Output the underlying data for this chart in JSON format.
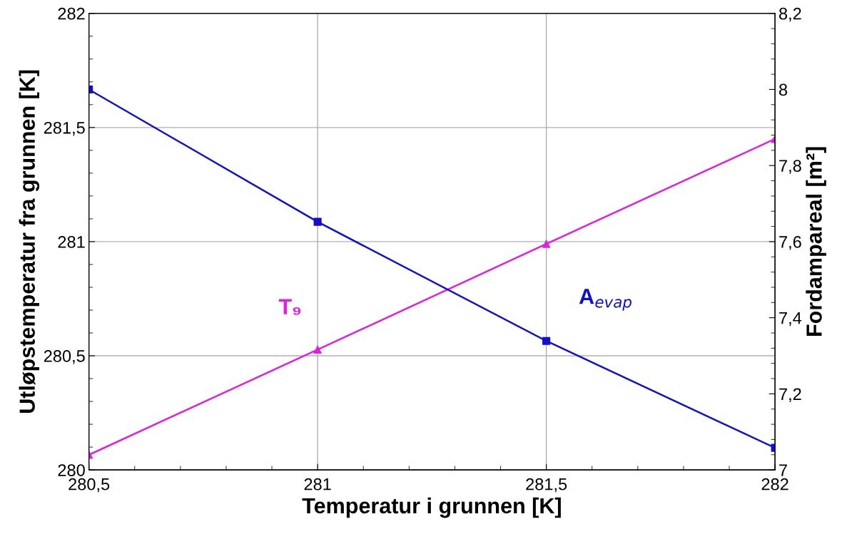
{
  "chart_data": {
    "type": "line",
    "xlabel": "Temperatur i grunnen [K]",
    "ylabel": "Utløpstemperatur fra grunnen [K]",
    "y2label": "Fordampareal [m²]",
    "x": [
      280.5,
      281,
      281.5,
      282
    ],
    "series": [
      {
        "name": "T₉",
        "color": "#e020e0",
        "marker": "triangle",
        "values": [
          280.066,
          280.527,
          280.99,
          281.45
        ]
      },
      {
        "name": "A$_{evap}$",
        "color": "#1010d0",
        "marker": "square",
        "axis": "y2",
        "values": [
          8.0,
          7.652,
          7.339,
          7.058
        ]
      }
    ],
    "xlim": [
      280.5,
      282
    ],
    "xticks": [
      {
        "value": 280.5,
        "label": "280,5"
      },
      281,
      {
        "value": 281.5,
        "label": "281,5"
      },
      282
    ],
    "ylim": [
      280,
      282
    ],
    "yticks": [
      280,
      {
        "value": 280.5,
        "label": "280,5"
      },
      281,
      {
        "value": 281.5,
        "label": "281,5"
      },
      282
    ],
    "y2lim": [
      7,
      8.2
    ],
    "y2ticks": [
      7,
      {
        "value": 7.2,
        "label": "7,2"
      },
      {
        "value": 7.4,
        "label": "7,4"
      },
      {
        "value": 7.6,
        "label": "7,6"
      },
      {
        "value": 7.8,
        "label": "7,8"
      },
      8,
      {
        "value": 8.2,
        "label": "8,2"
      }
    ],
    "grid": true,
    "legend": false,
    "line_style": "solid"
  }
}
